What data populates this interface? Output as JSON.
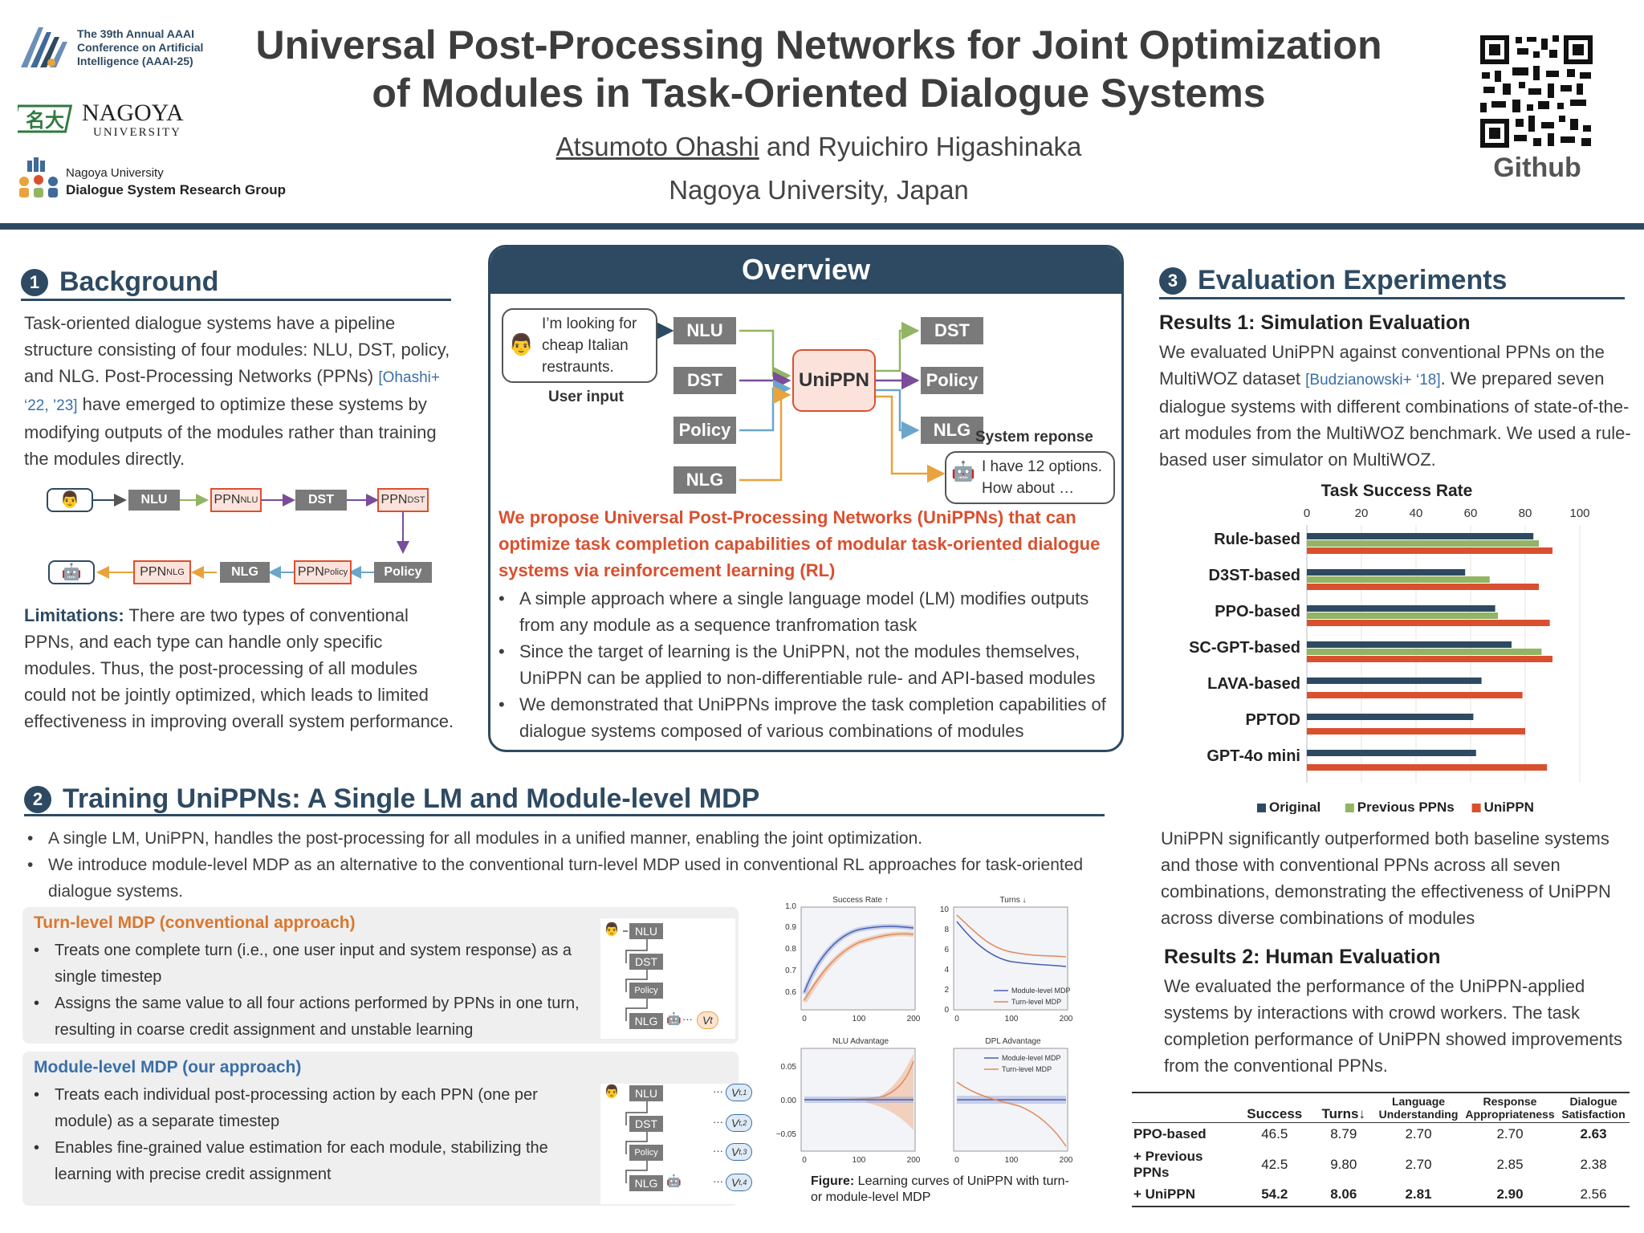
{
  "header": {
    "conference": [
      "The 39th Annual AAAI",
      "Conference on Artificial",
      "Intelligence (AAAI-25)"
    ],
    "university_logo": {
      "name": "NAGOYA",
      "sub": "UNIVERSITY"
    },
    "group": [
      "Nagoya University",
      "Dialogue System Research Group"
    ],
    "title_line1": "Universal Post-Processing Networks for Joint Optimization",
    "title_line2": "of Modules in Task-Oriented Dialogue Systems",
    "author1": "Atsumoto Ohashi",
    "author_rest": " and Ryuichiro Higashinaka",
    "affiliation": "Nagoya University, Japan",
    "github_label": "Github"
  },
  "background": {
    "num": "1",
    "title": "Background",
    "para1_a": "Task-oriented dialogue systems have a pipeline structure consisting of four modules: NLU, DST, policy, and NLG. Post-Processing Networks (PPNs) ",
    "para1_ref": "[Ohashi+ ‘22, ’23]",
    "para1_b": " have emerged to optimize these systems by modifying outputs of the modules rather than training the modules directly.",
    "pipeline": {
      "nlu": "NLU",
      "ppn": "PPN",
      "nlu_sub": "NLU",
      "dst": "DST",
      "dst_sub": "DST",
      "policy": "Policy",
      "policy_sub": "Policy",
      "nlg": "NLG",
      "nlg_sub": "NLG"
    },
    "limitations_label": "Limitations:",
    "limitations_text": " There are two types of conventional PPNs, and each type can handle only specific modules. Thus, the post-processing of all modules could not be jointly optimized, which leads to limited effectiveness in improving overall system performance."
  },
  "overview": {
    "title": "Overview",
    "user_bubble": "I’m looking for cheap Italian restraunts.",
    "user_input_label": "User input",
    "in_modules": [
      "NLU",
      "DST",
      "Policy",
      "NLG"
    ],
    "out_modules": [
      "DST",
      "Policy",
      "NLG"
    ],
    "center": "UniPPN",
    "system_label": "System reponse",
    "system_bubble": "I have 12 options. How about …",
    "propose": "We propose Universal Post-Processing Networks (UniPPNs) that can optimize task completion capabilities of modular task-oriented dialogue systems via reinforcement learning (RL)",
    "bullets": [
      "A simple approach where a single language model (LM) modifies outputs from any module as a sequence tranfromation task",
      "Since the target of learning is the UniPPN, not the modules themselves, UniPPN can be applied to non-differentiable rule- and API-based modules",
      "We demonstrated that UniPPNs improve the task completion capabilities of dialogue systems composed of various combinations of modules"
    ]
  },
  "training": {
    "num": "2",
    "title": "Training UniPPNs: A Single LM and Module-level MDP",
    "bullets": [
      "A single LM, UniPPN, handles the post-processing for all modules in a unified manner, enabling the joint optimization.",
      "We introduce module-level MDP as an alternative to the conventional turn-level MDP used in conventional RL approaches for task-oriented dialogue systems."
    ],
    "turn_title": "Turn-level MDP (conventional approach)",
    "turn_bullets": [
      "Treats one complete turn (i.e., one user input and system response) as a single timestep",
      "Assigns the same value to all four actions performed by PPNs in one turn, resulting in coarse credit assignment and unstable learning"
    ],
    "module_title": "Module-level MDP (our approach)",
    "module_bullets": [
      "Treats each individual post-processing action by each PPN (one per module) as a separate timestep",
      "Enables fine-grained value estimation for each module, stabilizing the learning with precise credit assignment"
    ],
    "diagram_modules": [
      "NLU",
      "DST",
      "Policy",
      "NLG"
    ],
    "v_turn": "V",
    "v_turn_sub": "t",
    "v_module": [
      "V",
      "V",
      "V",
      "V"
    ],
    "v_module_sub": [
      "t,1",
      "t,2",
      "t,3",
      "t,4"
    ],
    "ellipsis": "···",
    "fig_caption_label": "Figure:",
    "fig_caption_text": " Learning curves of UniPPN with turn- or module-level MDP",
    "curves": {
      "success": {
        "title": "Success Rate ↑",
        "yticks": [
          "1.0",
          "0.9",
          "0.8",
          "0.7",
          "0.6"
        ],
        "xticks": [
          "0",
          "100",
          "200"
        ]
      },
      "turns": {
        "title": "Turns ↓",
        "yticks": [
          "10",
          "8",
          "6",
          "4",
          "2",
          "0"
        ],
        "xticks": [
          "0",
          "100",
          "200"
        ]
      },
      "nlu_adv": {
        "title": "NLU Advantage",
        "yticks": [
          "0.05",
          "0.00",
          "−0.05"
        ],
        "xticks": [
          "0",
          "100",
          "200"
        ]
      },
      "dpl_adv": {
        "title": "DPL Advantage",
        "xticks": [
          "0",
          "100",
          "200"
        ]
      },
      "legend": [
        "Module-level MDP",
        "Turn-level MDP"
      ]
    }
  },
  "evaluation": {
    "num": "3",
    "title": "Evaluation Experiments",
    "r1_title": "Results 1: Simulation Evaluation",
    "r1_text_a": "We evaluated UniPPN against conventional PPNs on the MultiWOZ dataset ",
    "r1_ref": "[Budzianowski+ ‘18]",
    "r1_text_b": ". We prepared seven dialogue systems with different combinations of state-of-the-art modules from the MultiWOZ benchmark. We used a rule-based user simulator on MultiWOZ.",
    "r1_summary": "UniPPN significantly outperformed both baseline systems and those with conventional PPNs across all seven combinations, demonstrating the effectiveness of UniPPN across diverse combinations of modules",
    "r2_title": "Results 2: Human Evaluation",
    "r2_text": "We evaluated the performance of the UniPPN-applied systems by interactions with crowd workers. The task completion performance of UniPPN showed improvements from the conventional PPNs."
  },
  "chart_data": {
    "type": "bar",
    "title": "Task Success Rate",
    "orientation": "horizontal",
    "categories": [
      "Rule-based",
      "D3ST-based",
      "PPO-based",
      "SC-GPT-based",
      "LAVA-based",
      "PPTOD",
      "GPT-4o mini"
    ],
    "series": [
      {
        "name": "Original",
        "color": "#2e4a62",
        "values": [
          83,
          58,
          69,
          75,
          64,
          61,
          62
        ]
      },
      {
        "name": "Previous PPNs",
        "color": "#93b464",
        "values": [
          85,
          67,
          70,
          86,
          null,
          null,
          null
        ]
      },
      {
        "name": "UniPPN",
        "color": "#d9502f",
        "values": [
          90,
          85,
          89,
          90,
          79,
          80,
          88
        ]
      }
    ],
    "xticks": [
      "0",
      "20",
      "40",
      "60",
      "80",
      "100"
    ],
    "xlim": [
      0,
      100
    ],
    "legend_position": "bottom"
  },
  "human_table": {
    "headers": [
      "Success",
      "Turns↓",
      "Language Understanding",
      "Response Appropriateness",
      "Dialogue Satisfaction"
    ],
    "rows": [
      {
        "name": "PPO-based",
        "cells": [
          "46.5",
          "8.79",
          "2.70",
          "2.70",
          "2.63"
        ]
      },
      {
        "name": "+ Previous PPNs",
        "cells": [
          "42.5",
          "9.80",
          "2.70",
          "2.85",
          "2.38"
        ]
      },
      {
        "name": "+ UniPPN",
        "cells": [
          "54.2",
          "8.06",
          "2.81",
          "2.90",
          "2.56"
        ]
      }
    ]
  }
}
